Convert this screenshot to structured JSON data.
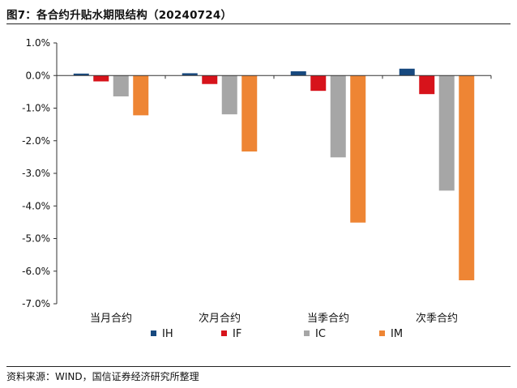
{
  "figure": {
    "title": "图7：各合约升贴水期限结构（20240724）",
    "source": "资料来源：WIND，国信证券经济研究所整理"
  },
  "colors": {
    "IH": "#17497F",
    "IF": "#D7131B",
    "IC": "#A6A6A6",
    "IM": "#EE8534"
  },
  "chart_data": {
    "type": "bar",
    "title": "",
    "xlabel": "",
    "ylabel": "",
    "categories": [
      "当月合约",
      "次月合约",
      "当季合约",
      "次季合约"
    ],
    "ylim": [
      -0.07,
      0.01
    ],
    "y_ticks": [
      0.01,
      0.0,
      -0.01,
      -0.02,
      -0.03,
      -0.04,
      -0.05,
      -0.06,
      -0.07
    ],
    "y_tick_labels": [
      "1.0%",
      "0.0%",
      "-1.0%",
      "-2.0%",
      "-3.0%",
      "-4.0%",
      "-5.0%",
      "-6.0%",
      "-7.0%"
    ],
    "grid": false,
    "legend_position": "bottom",
    "series": [
      {
        "name": "IH",
        "values": [
          0.0006,
          0.0007,
          0.0013,
          0.0021
        ]
      },
      {
        "name": "IF",
        "values": [
          -0.0018,
          -0.0026,
          -0.0047,
          -0.0057
        ]
      },
      {
        "name": "IC",
        "values": [
          -0.0064,
          -0.0119,
          -0.0251,
          -0.0353
        ]
      },
      {
        "name": "IM",
        "values": [
          -0.0122,
          -0.0233,
          -0.0451,
          -0.0628
        ]
      }
    ]
  }
}
